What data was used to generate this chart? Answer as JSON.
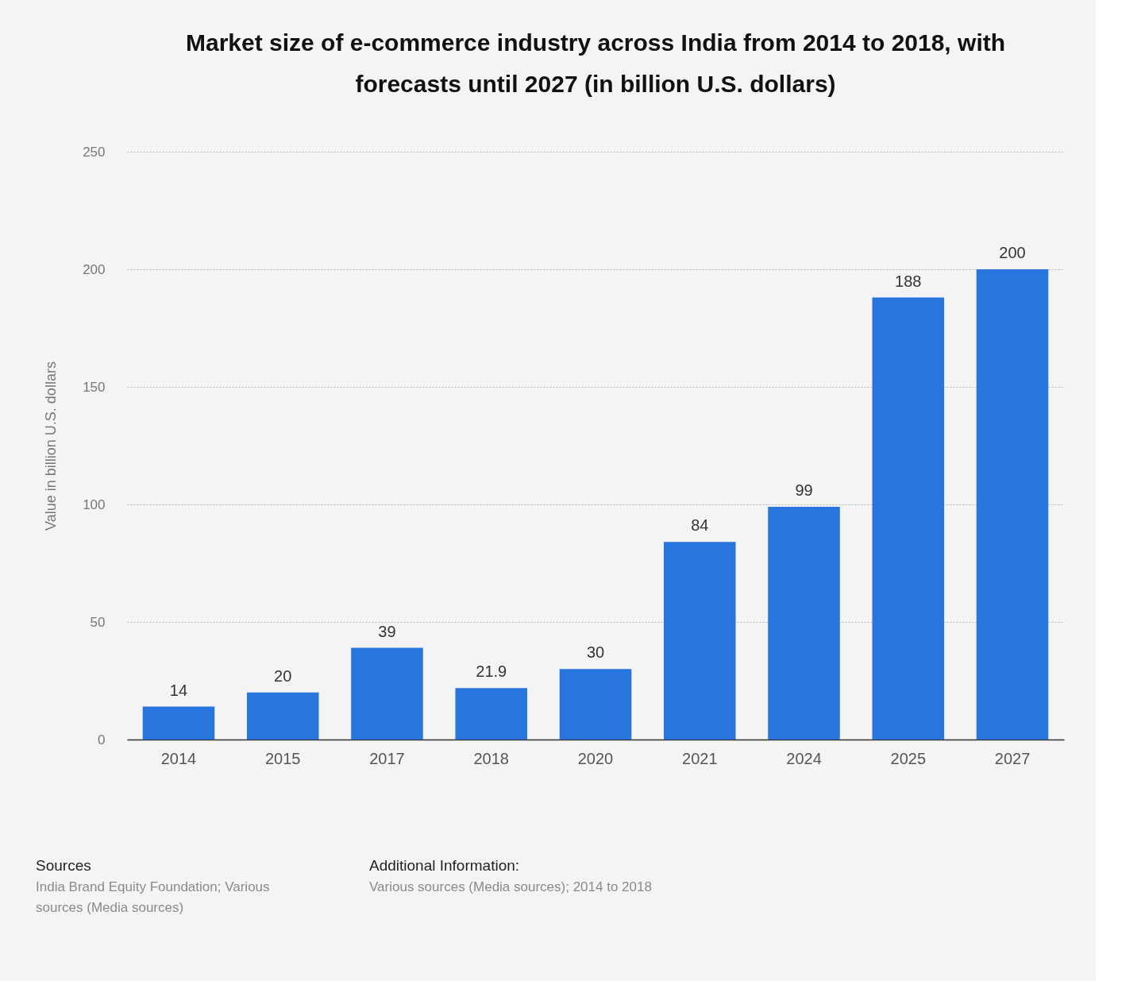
{
  "chart_data": {
    "type": "bar",
    "title": "Market size of e-commerce industry across India from 2014 to 2018, with forecasts until 2027 (in billion U.S. dollars)",
    "ylabel": "Value in billion U.S. dollars",
    "categories": [
      "2014",
      "2015",
      "2017",
      "2018",
      "2020",
      "2021",
      "2024",
      "2025",
      "2027"
    ],
    "values": [
      14,
      20,
      39,
      21.9,
      30,
      84,
      99,
      188,
      200
    ],
    "color": "#2876dd",
    "ylim": [
      0,
      250
    ],
    "yticks": [
      0,
      50,
      100,
      150,
      200,
      250
    ],
    "grid": "y",
    "data_labels": true,
    "annotations": [
      "Sources",
      "India Brand Equity Foundation; Various sources (Media sources)",
      "Additional Information:",
      "Various sources (Media sources); 2014 to 2018"
    ]
  }
}
